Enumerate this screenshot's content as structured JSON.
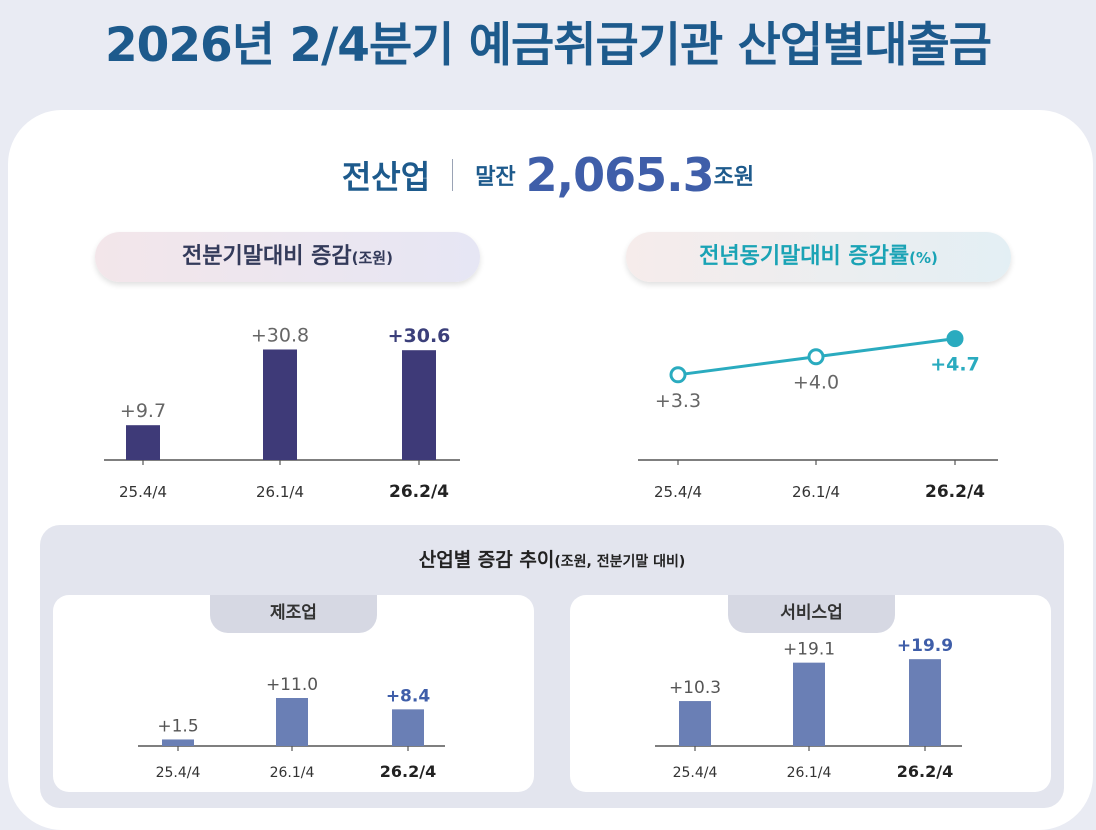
{
  "title": "2026년 2/4분기 예금취급기관 산업별대출금",
  "headline": {
    "industry": "전산업",
    "balance_label": "말잔",
    "balance_value": "2,065.3",
    "balance_unit": "조원"
  },
  "left_panel": {
    "label": "전분기말대비 증감",
    "unit": "(조원)"
  },
  "right_panel": {
    "label": "전년동기말대비 증감률",
    "unit": "(%)"
  },
  "trend": {
    "title": "산업별 증감 추이",
    "unit": "(조원, 전분기말 대비)",
    "manufacturing_label": "제조업",
    "services_label": "서비스업"
  },
  "colors": {
    "bar_main": "#3e3a78",
    "bar_sub": "#6a7fb5",
    "line": "#2aabbf",
    "title": "#1d5a8c"
  },
  "chart_data": [
    {
      "type": "bar",
      "title": "전분기말대비 증감(조원)",
      "categories": [
        "25.4/4",
        "26.1/4",
        "26.2/4"
      ],
      "values": [
        9.7,
        30.8,
        30.6
      ],
      "labels": [
        "+9.7",
        "+30.8",
        "+30.6"
      ],
      "ylim": [
        0,
        34
      ]
    },
    {
      "type": "line",
      "title": "전년동기말대비 증감률(%)",
      "categories": [
        "25.4/4",
        "26.1/4",
        "26.2/4"
      ],
      "values": [
        3.3,
        4.0,
        4.7
      ],
      "labels": [
        "+3.3",
        "+4.0",
        "+4.7"
      ],
      "ylim": [
        0,
        5.5
      ]
    },
    {
      "type": "bar",
      "title": "제조업",
      "categories": [
        "25.4/4",
        "26.1/4",
        "26.2/4"
      ],
      "values": [
        1.5,
        11.0,
        8.4
      ],
      "labels": [
        "+1.5",
        "+11.0",
        "+8.4"
      ],
      "ylim": [
        0,
        22
      ]
    },
    {
      "type": "bar",
      "title": "서비스업",
      "categories": [
        "25.4/4",
        "26.1/4",
        "26.2/4"
      ],
      "values": [
        10.3,
        19.1,
        19.9
      ],
      "labels": [
        "+10.3",
        "+19.1",
        "+19.9"
      ],
      "ylim": [
        0,
        22
      ]
    }
  ]
}
